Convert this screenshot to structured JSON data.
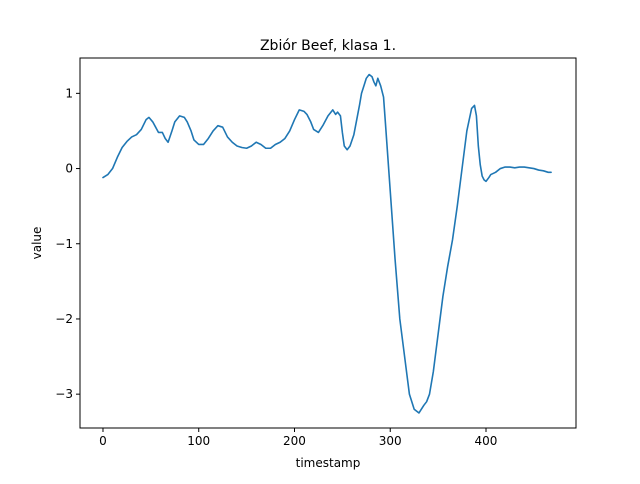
{
  "chart_data": {
    "type": "line",
    "title": "Zbiór Beef, klasa 1.",
    "xlabel": "timestamp",
    "ylabel": "value",
    "xlim": [
      -24,
      494
    ],
    "ylim": [
      -3.45,
      1.47
    ],
    "xticks": [
      0,
      100,
      200,
      300,
      400
    ],
    "yticks": [
      -3,
      -2,
      -1,
      0,
      1
    ],
    "xtick_labels": [
      "0",
      "100",
      "200",
      "300",
      "400"
    ],
    "ytick_labels": [
      "−3",
      "−2",
      "−1",
      "0",
      "1"
    ],
    "grid": false,
    "legend": "none",
    "line_color": "#1f77b4",
    "series": [
      {
        "x": [
          0,
          5,
          10,
          15,
          20,
          25,
          30,
          35,
          40,
          45,
          48,
          52,
          55,
          58,
          62,
          65,
          68,
          72,
          75,
          80,
          85,
          88,
          92,
          95,
          100,
          105,
          110,
          115,
          120,
          125,
          130,
          135,
          140,
          145,
          150,
          155,
          160,
          165,
          170,
          175,
          180,
          185,
          190,
          195,
          200,
          205,
          210,
          213,
          217,
          220,
          225,
          230,
          235,
          240,
          243,
          245,
          248,
          250,
          252,
          255,
          258,
          262,
          265,
          268,
          270,
          273,
          275,
          278,
          281,
          283,
          285,
          287,
          290,
          293,
          295,
          300,
          305,
          310,
          315,
          320,
          325,
          330,
          335,
          338,
          341,
          345,
          348,
          350,
          355,
          360,
          365,
          370,
          375,
          380,
          385,
          388,
          390,
          392,
          394,
          396,
          398,
          400,
          403,
          405,
          410,
          415,
          420,
          425,
          430,
          435,
          440,
          445,
          450,
          455,
          460,
          465,
          468
        ],
        "y": [
          -0.12,
          -0.08,
          0.0,
          0.15,
          0.28,
          0.36,
          0.42,
          0.45,
          0.52,
          0.65,
          0.68,
          0.62,
          0.55,
          0.48,
          0.48,
          0.4,
          0.35,
          0.5,
          0.62,
          0.7,
          0.68,
          0.62,
          0.5,
          0.38,
          0.32,
          0.32,
          0.4,
          0.5,
          0.57,
          0.55,
          0.42,
          0.35,
          0.3,
          0.28,
          0.27,
          0.3,
          0.35,
          0.32,
          0.27,
          0.27,
          0.32,
          0.35,
          0.4,
          0.5,
          0.65,
          0.78,
          0.76,
          0.72,
          0.62,
          0.52,
          0.48,
          0.58,
          0.7,
          0.78,
          0.72,
          0.75,
          0.7,
          0.48,
          0.3,
          0.25,
          0.3,
          0.45,
          0.65,
          0.85,
          1.0,
          1.12,
          1.2,
          1.25,
          1.22,
          1.15,
          1.1,
          1.2,
          1.1,
          0.95,
          0.6,
          -0.3,
          -1.2,
          -2.0,
          -2.5,
          -3.0,
          -3.2,
          -3.25,
          -3.15,
          -3.1,
          -3.0,
          -2.7,
          -2.4,
          -2.2,
          -1.7,
          -1.3,
          -0.95,
          -0.5,
          0.0,
          0.5,
          0.8,
          0.84,
          0.7,
          0.3,
          0.05,
          -0.1,
          -0.15,
          -0.17,
          -0.12,
          -0.08,
          -0.05,
          0.0,
          0.02,
          0.02,
          0.01,
          0.02,
          0.02,
          0.01,
          0.0,
          -0.02,
          -0.03,
          -0.05,
          -0.05
        ]
      }
    ]
  }
}
